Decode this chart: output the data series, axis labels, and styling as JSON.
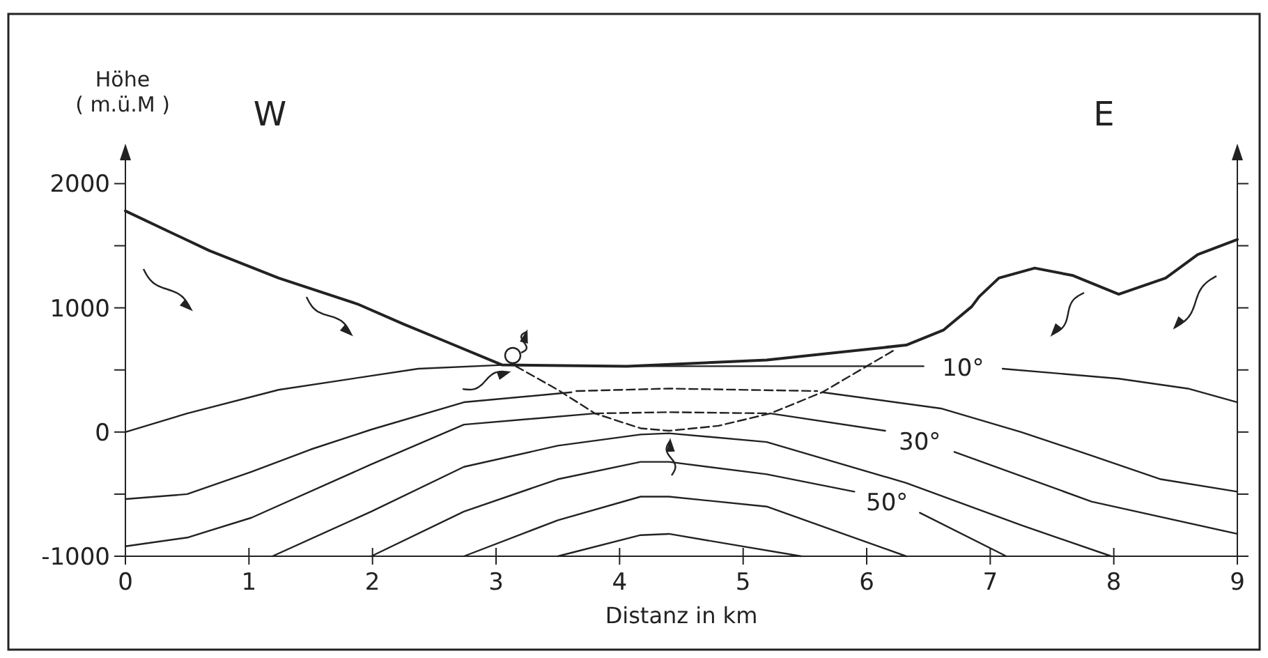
{
  "chart_data": {
    "type": "line",
    "xlabel": "Distanz in km",
    "ylabel": "Höhe\n( m.ü.M )",
    "annotations": [
      "W",
      "E"
    ],
    "xlim": [
      0,
      9
    ],
    "xticks": [
      0,
      1,
      2,
      3,
      4,
      5,
      6,
      7,
      8,
      9
    ],
    "ylim": [
      -1000,
      2300
    ],
    "yticks": [
      -1000,
      {
        "value": -500,
        "label": null
      },
      0,
      {
        "value": 500,
        "label": null
      },
      1000,
      {
        "value": 1500,
        "label": null
      },
      2000
    ],
    "grid": false,
    "marker": "none",
    "line_style": "solid",
    "series": [
      {
        "color": "#222222",
        "x": [
          0,
          0.68,
          1.24,
          1.88,
          2.25,
          2.59,
          3.05,
          4.06,
          5.19,
          6.32,
          6.62,
          6.85,
          6.91,
          7.07,
          7.36,
          7.67,
          8.04,
          8.42,
          8.68,
          9
        ],
        "values": [
          1780,
          1460,
          1240,
          1030,
          870,
          730,
          540,
          530,
          580,
          700,
          820,
          1010,
          1090,
          1240,
          1320,
          1260,
          1110,
          1240,
          1430,
          1550
        ]
      },
      {
        "name": "10°",
        "color": "#222222",
        "x": [
          0,
          0.5,
          1.24,
          2.37,
          3.05,
          4.06,
          5.19,
          6.46,
          6.78,
          7.1,
          8.04,
          8.6,
          9
        ],
        "values": [
          0,
          150,
          340,
          510,
          540,
          530,
          530,
          530,
          null,
          510,
          430,
          350,
          240
        ]
      },
      {
        "color": "#222222",
        "x": [
          0,
          0.5,
          1.02,
          1.5,
          1.99,
          2.74,
          3.61
        ],
        "values": [
          -540,
          -500,
          -320,
          -140,
          20,
          240,
          320
        ]
      },
      {
        "color": "#222222",
        "line_style": "dashed",
        "x": [
          3.65,
          4.4,
          5.6
        ],
        "values": [
          330,
          350,
          330
        ]
      },
      {
        "color": "#222222",
        "x": [
          5.64,
          6.6,
          7.25,
          7.82,
          8.38,
          9
        ],
        "values": [
          320,
          190,
          0,
          -190,
          -380,
          -480
        ]
      },
      {
        "color": "#222222",
        "x": [
          0,
          0.5,
          1.02,
          1.99,
          2.74,
          3.8
        ],
        "values": [
          -920,
          -850,
          -690,
          -260,
          60,
          150
        ]
      },
      {
        "color": "#222222",
        "line_style": "dashed",
        "x": [
          3.8,
          4.4,
          5.22
        ],
        "values": [
          150,
          160,
          150
        ]
      },
      {
        "name": "30°",
        "color": "#222222",
        "x": [
          5.22,
          6.15,
          6.43,
          6.71,
          7.82,
          9
        ],
        "values": [
          150,
          10,
          null,
          -160,
          -560,
          -820
        ]
      },
      {
        "color": "#222222",
        "x": [
          1.19,
          1.99,
          2.74,
          3.5,
          4.17,
          4.4,
          5.19,
          6.32,
          7.25,
          7.98
        ],
        "values": [
          -1000,
          -640,
          -280,
          -110,
          -20,
          -10,
          -80,
          -410,
          -750,
          -1000
        ]
      },
      {
        "name": "50°",
        "color": "#222222",
        "x": [
          1.99,
          2.74,
          3.5,
          4.17,
          4.4,
          5.19,
          5.9,
          6.17,
          6.43,
          7.13
        ],
        "values": [
          -1000,
          -640,
          -380,
          -240,
          -240,
          -340,
          -480,
          null,
          -650,
          -1000
        ]
      },
      {
        "color": "#222222",
        "x": [
          2.74,
          3.5,
          4.17,
          4.4,
          5.19,
          6.32
        ],
        "values": [
          -1000,
          -710,
          -520,
          -520,
          -600,
          -1000
        ]
      },
      {
        "color": "#222222",
        "x": [
          3.5,
          4.17,
          4.4,
          5.47
        ],
        "values": [
          -1000,
          -830,
          -820,
          -1000
        ]
      },
      {
        "color": "#222222",
        "line_style": "dashed",
        "x": [
          3.16,
          3.5,
          3.8,
          4.17,
          4.4,
          4.8,
          5.22,
          5.64,
          6.24
        ],
        "values": [
          530,
          340,
          150,
          30,
          10,
          50,
          150,
          320,
          670
        ]
      }
    ]
  }
}
